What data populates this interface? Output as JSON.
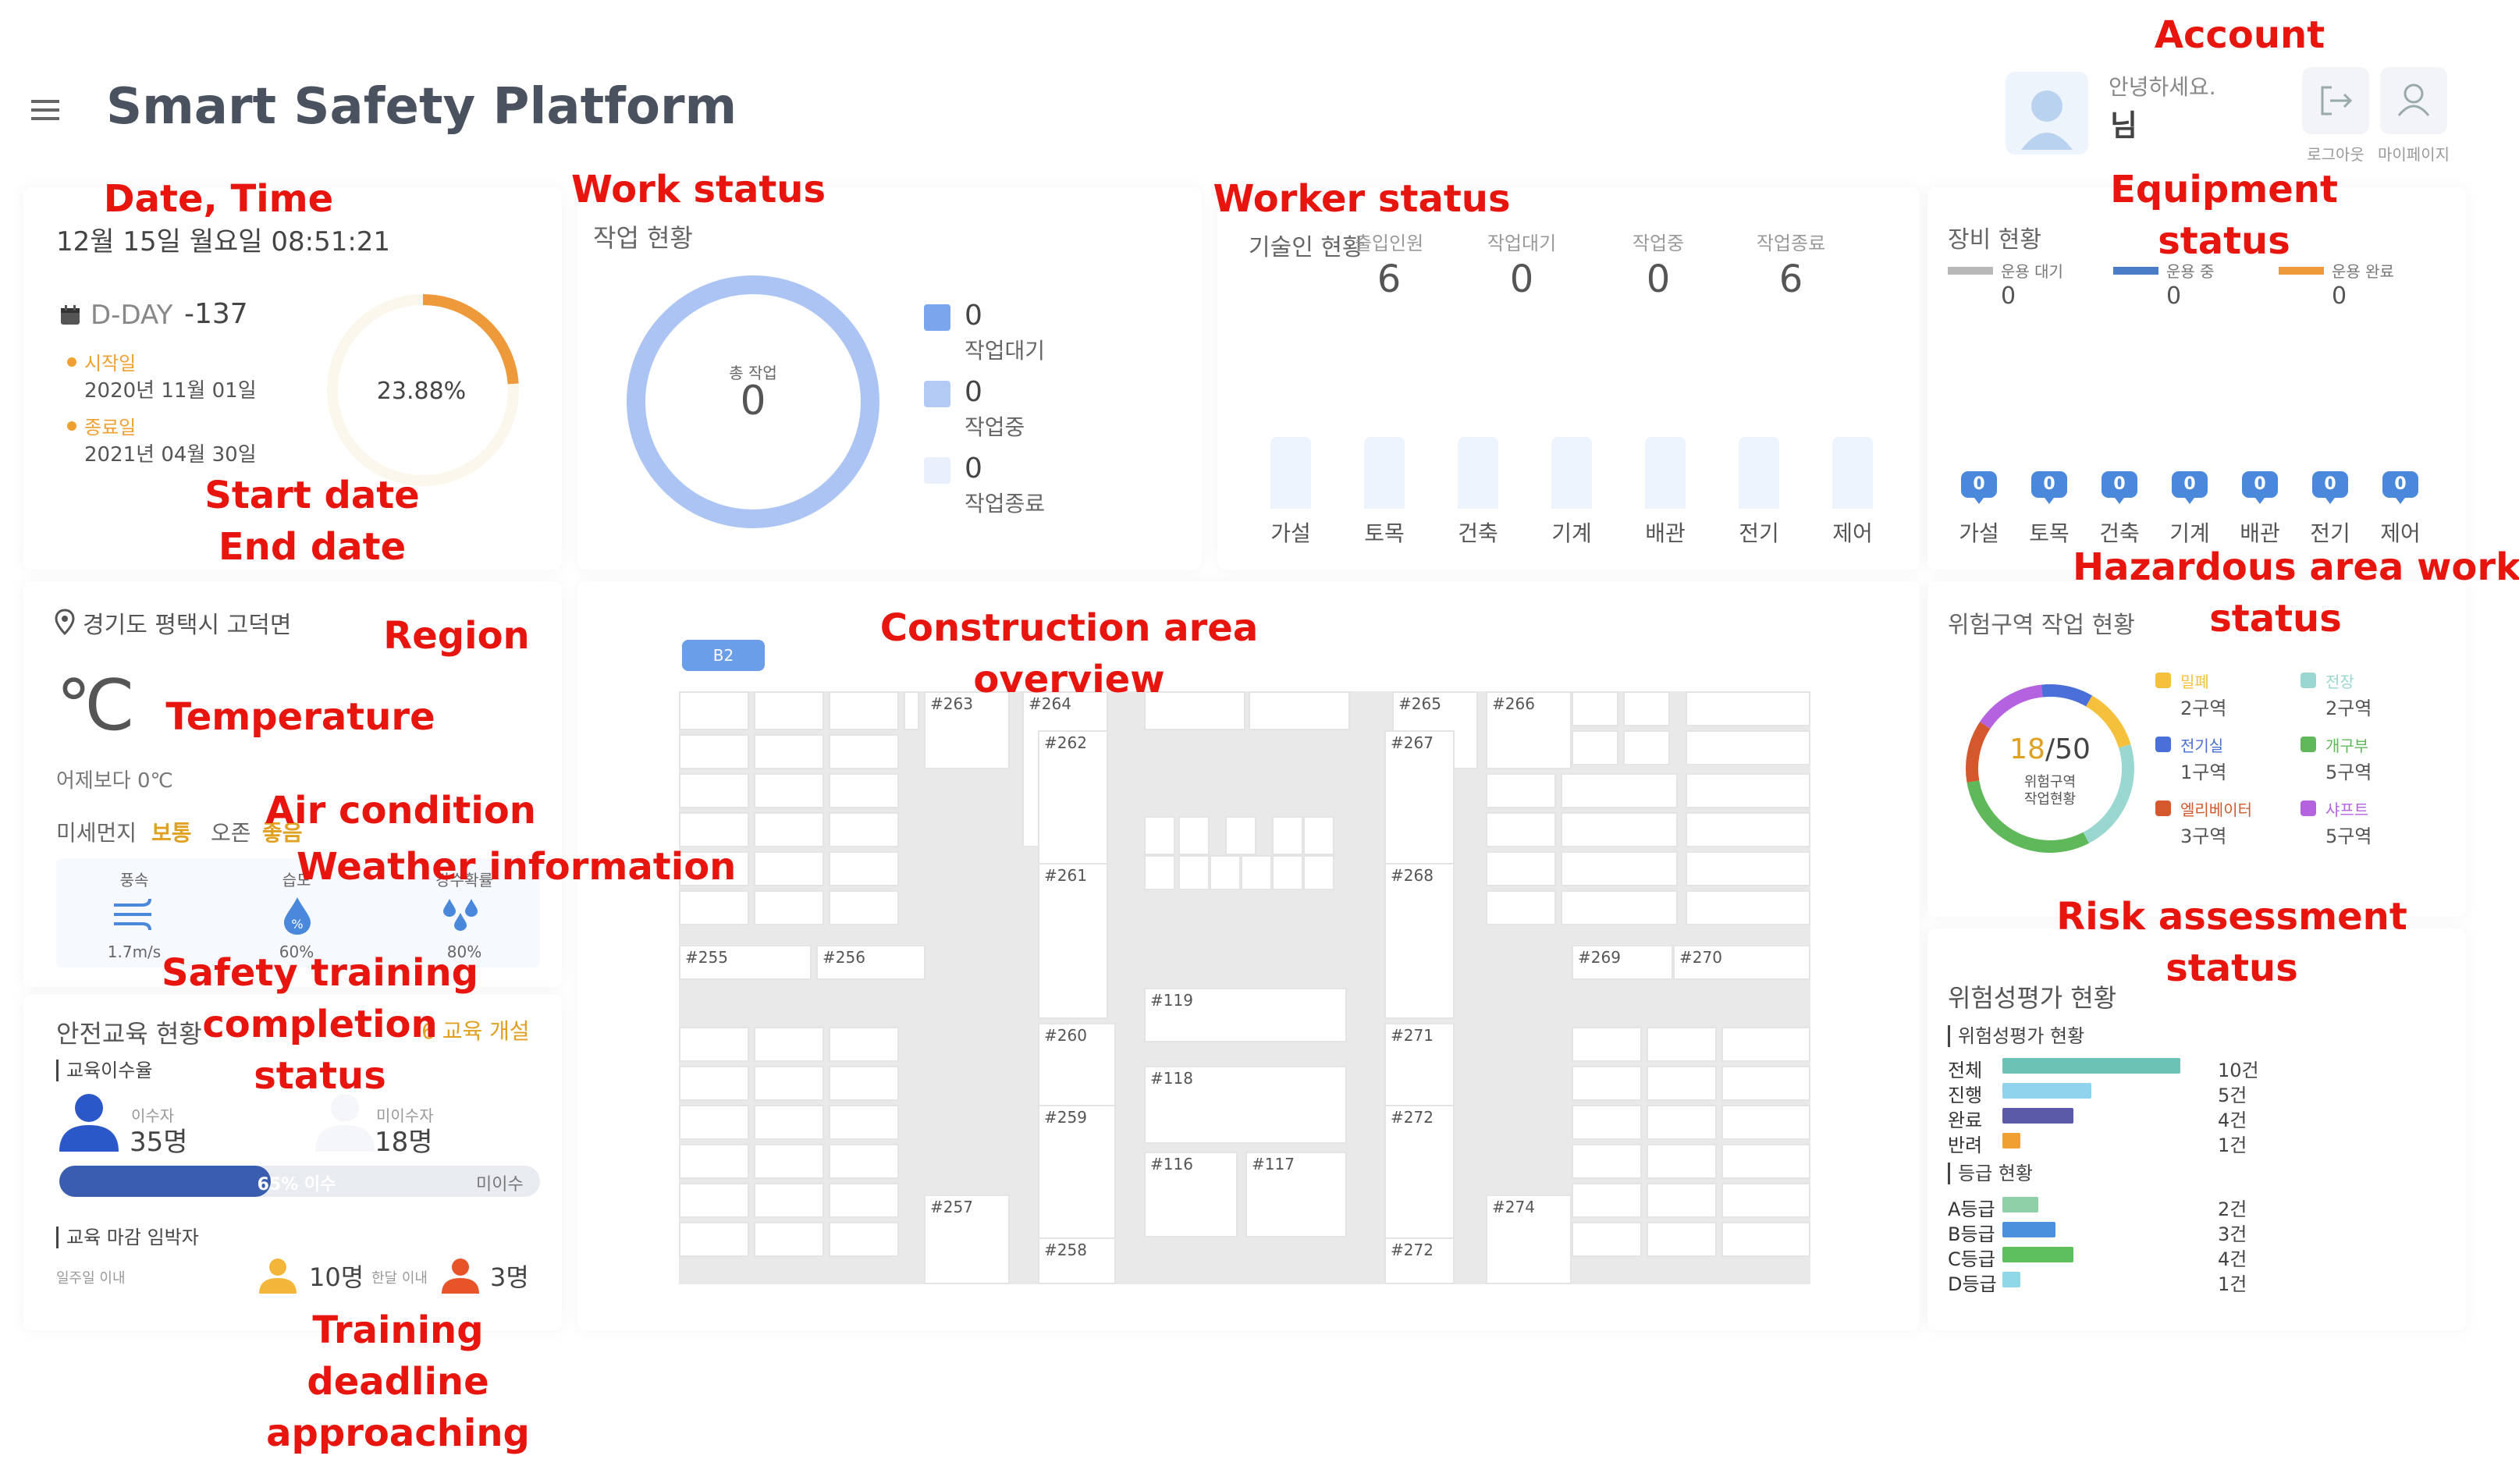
{
  "header": {
    "title": "Smart Safety Platform",
    "greeting": "안녕하세요.",
    "user_suffix": "님",
    "logout": "로그아웃",
    "mypage": "마이페이지"
  },
  "annotations": {
    "account": "Account",
    "date_time": "Date, Time",
    "work_status": "Work status",
    "worker_status": "Worker status",
    "equipment_status": [
      "Equipment",
      "status"
    ],
    "start_end": [
      "Start date",
      "End date"
    ],
    "hazard": [
      "Hazardous area work",
      "status"
    ],
    "region": "Region",
    "area_overview": [
      "Construction area",
      "overview"
    ],
    "temperature": "Temperature",
    "air": "Air condition",
    "weather": "Weather information",
    "safety_training": [
      "Safety training",
      "completion",
      "status"
    ],
    "risk": [
      "Risk assessment",
      "status"
    ],
    "deadline": [
      "Training",
      "deadline",
      "approaching"
    ]
  },
  "datetime": {
    "text": "12월 15일 월요일 08:51:21"
  },
  "dday": {
    "label": "D-DAY",
    "value": "-137",
    "start_label": "시작일",
    "start_date": "2020년 11월 01일",
    "end_label": "종료일",
    "end_date": "2021년 04월 30일",
    "percent": "23.88%",
    "progress": 0.2388
  },
  "work": {
    "title": "작업 현황",
    "total_label": "총 작업",
    "total": "0",
    "legend": [
      {
        "value": "0",
        "label": "작업대기",
        "color": "#7aa6ee"
      },
      {
        "value": "0",
        "label": "작업중",
        "color": "#b3cbf4"
      },
      {
        "value": "0",
        "label": "작업종료",
        "color": "#eaf0fb"
      }
    ]
  },
  "worker": {
    "title": "기술인 현황",
    "stats": [
      {
        "label": "출입인원",
        "value": "6"
      },
      {
        "label": "작업대기",
        "value": "0"
      },
      {
        "label": "작업중",
        "value": "0"
      },
      {
        "label": "작업종료",
        "value": "6"
      }
    ],
    "trades": [
      "가설",
      "토목",
      "건축",
      "기계",
      "배관",
      "전기",
      "제어"
    ]
  },
  "equipment": {
    "title": "장비 현황",
    "legend": [
      {
        "label": "운용 대기",
        "value": "0",
        "color": "#b8b8b8"
      },
      {
        "label": "운용 중",
        "value": "0",
        "color": "#4a7cc8"
      },
      {
        "label": "운용 완료",
        "value": "0",
        "color": "#ee9a3a"
      }
    ],
    "trades": [
      "가설",
      "토목",
      "건축",
      "기계",
      "배관",
      "전기",
      "제어"
    ],
    "counts": [
      "0",
      "0",
      "0",
      "0",
      "0",
      "0",
      "0"
    ]
  },
  "weather": {
    "region": "경기도 평택시 고덕면",
    "temp": "℃",
    "compare": "어제보다 0℃",
    "dust_label": "미세먼지",
    "dust_value": "보통",
    "ozone_label": "오존",
    "ozone_value": "좋음",
    "wind_label": "풍속",
    "wind_value": "1.7m/s",
    "humid_label": "습도",
    "humid_value": "60%",
    "rain_label": "강수확률",
    "rain_value": "80%"
  },
  "training": {
    "title": "안전교육 현황",
    "notice": "6 교육 개설",
    "rate_title": "교육이수율",
    "done_label": "이수자",
    "done_value": "35명",
    "notdone_label": "미이수자",
    "notdone_value": "18명",
    "bar_label": "65% 이수",
    "bar_right": "미이수",
    "progress": 0.65,
    "deadline_title": "교육 마감 임박자",
    "week_label": "일주일 이내",
    "week_value": "10명",
    "half_label": "한달 이내",
    "half_value": "3명"
  },
  "area": {
    "floor": "B2",
    "rooms": [
      "#263",
      "#264",
      "#265",
      "#266",
      "#262",
      "#267",
      "#261",
      "#268",
      "#255",
      "#256",
      "#269",
      "#270",
      "#119",
      "#260",
      "#271",
      "#118",
      "#259",
      "#272",
      "#116",
      "#117",
      "#257",
      "#274",
      "#258",
      "#272"
    ]
  },
  "hazard": {
    "title": "위험구역 작업 현황",
    "center_value": "18",
    "center_total": "/50",
    "center_label": [
      "위험구역",
      "작업현황"
    ],
    "items": [
      {
        "label": "밀폐",
        "value": "2구역",
        "color": "#f5c13c"
      },
      {
        "label": "전장",
        "value": "2구역",
        "color": "#9ad7d0"
      },
      {
        "label": "전기실",
        "value": "1구역",
        "color": "#4a6fd8"
      },
      {
        "label": "개구부",
        "value": "5구역",
        "color": "#5fb85a"
      },
      {
        "label": "엘리베이터",
        "value": "3구역",
        "color": "#d4582c"
      },
      {
        "label": "샤프트",
        "value": "5구역",
        "color": "#b462e0"
      }
    ]
  },
  "risk": {
    "title": "위험성평가 현황",
    "sub1": "위험성평가 현황",
    "rows1": [
      {
        "label": "전체",
        "value": 10,
        "text": "10건",
        "color": "#6cc2b4"
      },
      {
        "label": "진행",
        "value": 5,
        "text": "5건",
        "color": "#8fd4ec"
      },
      {
        "label": "완료",
        "value": 4,
        "text": "4건",
        "color": "#5a5aa8"
      },
      {
        "label": "반려",
        "value": 1,
        "text": "1건",
        "color": "#f0a030"
      }
    ],
    "sub2": "등급 현황",
    "rows2": [
      {
        "label": "A등급",
        "value": 2,
        "text": "2건",
        "color": "#8fd0a8"
      },
      {
        "label": "B등급",
        "value": 3,
        "text": "3건",
        "color": "#4a90dc"
      },
      {
        "label": "C등급",
        "value": 4,
        "text": "4건",
        "color": "#5cbf5c"
      },
      {
        "label": "D등급",
        "value": 1,
        "text": "1건",
        "color": "#8fd8e8"
      }
    ]
  }
}
